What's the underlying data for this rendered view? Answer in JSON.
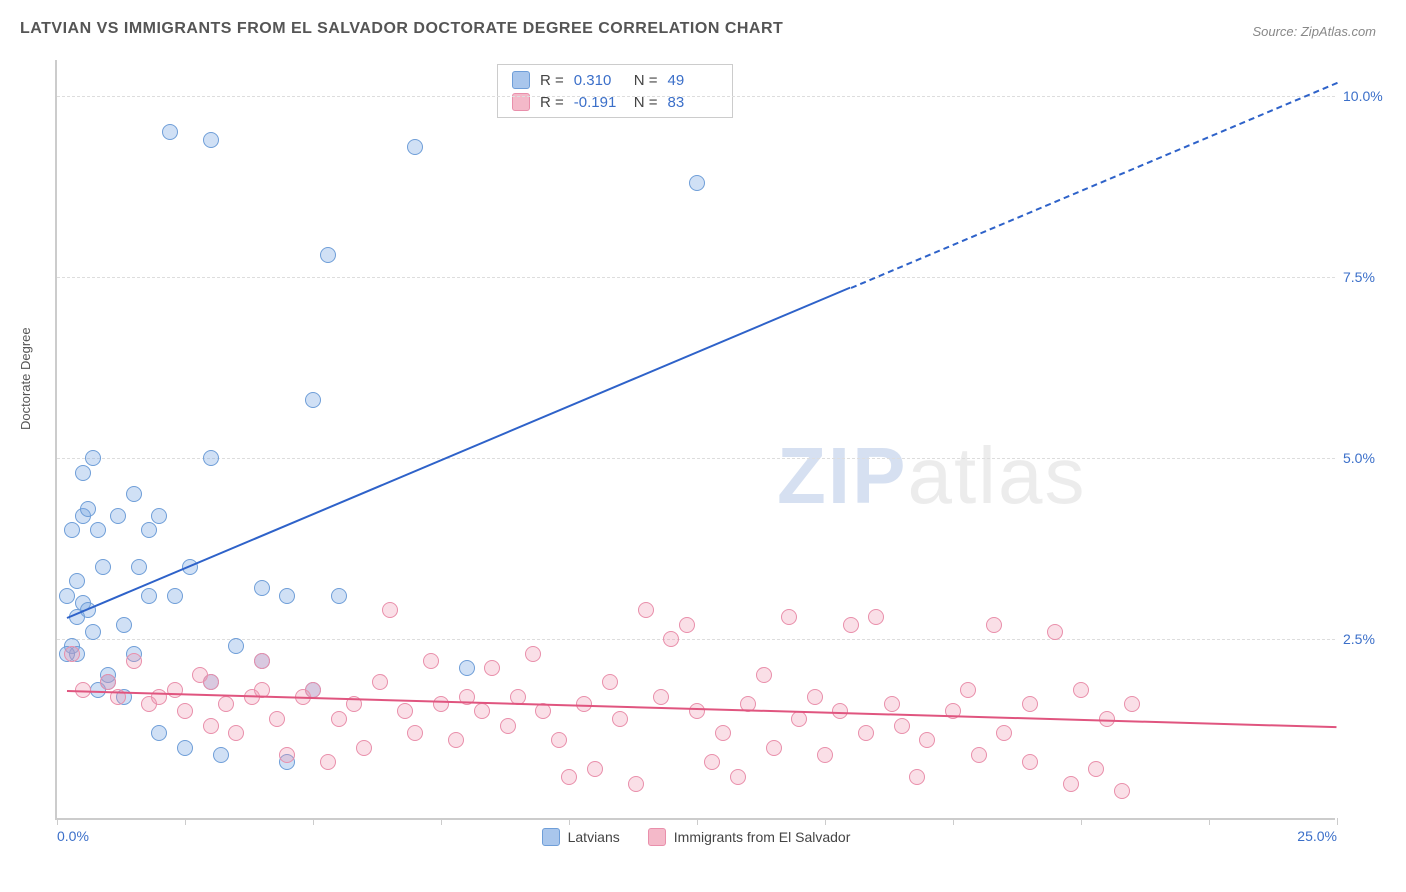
{
  "title": "LATVIAN VS IMMIGRANTS FROM EL SALVADOR DOCTORATE DEGREE CORRELATION CHART",
  "source": "Source: ZipAtlas.com",
  "y_axis_label": "Doctorate Degree",
  "watermark": {
    "part1": "ZIP",
    "part2": "atlas"
  },
  "chart": {
    "type": "scatter",
    "background_color": "#ffffff",
    "grid_color": "#dddddd",
    "axis_color": "#cccccc",
    "xlim": [
      0,
      25
    ],
    "ylim": [
      0,
      10.5
    ],
    "x_ticks": [
      0,
      2.5,
      5,
      7.5,
      10,
      12.5,
      15,
      17.5,
      20,
      22.5,
      25
    ],
    "x_tick_labels": {
      "0": "0.0%",
      "25": "25.0%"
    },
    "y_ticks": [
      2.5,
      5.0,
      7.5,
      10.0
    ],
    "y_tick_labels": [
      "2.5%",
      "5.0%",
      "7.5%",
      "10.0%"
    ],
    "point_radius": 8,
    "point_stroke_width": 1.5,
    "series": [
      {
        "name": "Latvians",
        "color_fill": "rgba(120,165,225,0.35)",
        "color_stroke": "#6f9ed8",
        "swatch_color": "#a9c6ec",
        "R": "0.310",
        "N": "49",
        "trend": {
          "x1": 0.2,
          "y1": 2.8,
          "x2": 25,
          "y2": 10.2,
          "color": "#2e62c9",
          "solid_until_x": 15.5
        },
        "points": [
          [
            0.3,
            2.4
          ],
          [
            0.4,
            2.3
          ],
          [
            0.2,
            3.1
          ],
          [
            0.5,
            3.0
          ],
          [
            0.6,
            2.9
          ],
          [
            0.4,
            3.3
          ],
          [
            0.7,
            2.6
          ],
          [
            0.8,
            1.8
          ],
          [
            1.0,
            1.9
          ],
          [
            0.3,
            4.0
          ],
          [
            0.5,
            4.2
          ],
          [
            0.6,
            4.3
          ],
          [
            0.8,
            4.0
          ],
          [
            1.2,
            4.2
          ],
          [
            1.5,
            4.5
          ],
          [
            1.8,
            4.0
          ],
          [
            2.0,
            4.2
          ],
          [
            0.5,
            4.8
          ],
          [
            0.7,
            5.0
          ],
          [
            1.3,
            2.7
          ],
          [
            1.6,
            3.5
          ],
          [
            1.8,
            3.1
          ],
          [
            2.3,
            3.1
          ],
          [
            2.6,
            3.5
          ],
          [
            3.0,
            1.9
          ],
          [
            3.5,
            2.4
          ],
          [
            4.0,
            2.2
          ],
          [
            4.5,
            3.1
          ],
          [
            5.0,
            1.8
          ],
          [
            3.0,
            5.0
          ],
          [
            4.0,
            3.2
          ],
          [
            2.0,
            1.2
          ],
          [
            2.5,
            1.0
          ],
          [
            3.2,
            0.9
          ],
          [
            4.5,
            0.8
          ],
          [
            5.5,
            3.1
          ],
          [
            1.0,
            2.0
          ],
          [
            1.3,
            1.7
          ],
          [
            2.2,
            9.5
          ],
          [
            3.0,
            9.4
          ],
          [
            7.0,
            9.3
          ],
          [
            5.0,
            5.8
          ],
          [
            5.3,
            7.8
          ],
          [
            12.5,
            8.8
          ],
          [
            8.0,
            2.1
          ],
          [
            1.5,
            2.3
          ],
          [
            0.9,
            3.5
          ],
          [
            0.4,
            2.8
          ],
          [
            0.2,
            2.3
          ]
        ]
      },
      {
        "name": "Immigrants from El Salvador",
        "color_fill": "rgba(240,150,175,0.30)",
        "color_stroke": "#e98fab",
        "swatch_color": "#f4b9c9",
        "R": "-0.191",
        "N": "83",
        "trend": {
          "x1": 0.2,
          "y1": 1.8,
          "x2": 25,
          "y2": 1.3,
          "color": "#e0557f",
          "solid_until_x": 25
        },
        "points": [
          [
            0.5,
            1.8
          ],
          [
            1.0,
            1.9
          ],
          [
            1.2,
            1.7
          ],
          [
            1.5,
            2.2
          ],
          [
            1.8,
            1.6
          ],
          [
            2.0,
            1.7
          ],
          [
            2.3,
            1.8
          ],
          [
            2.5,
            1.5
          ],
          [
            2.8,
            2.0
          ],
          [
            3.0,
            1.9
          ],
          [
            3.3,
            1.6
          ],
          [
            3.5,
            1.2
          ],
          [
            3.8,
            1.7
          ],
          [
            4.0,
            1.8
          ],
          [
            4.3,
            1.4
          ],
          [
            4.5,
            0.9
          ],
          [
            4.8,
            1.7
          ],
          [
            5.0,
            1.8
          ],
          [
            5.3,
            0.8
          ],
          [
            5.5,
            1.4
          ],
          [
            5.8,
            1.6
          ],
          [
            6.0,
            1.0
          ],
          [
            6.3,
            1.9
          ],
          [
            6.5,
            2.9
          ],
          [
            6.8,
            1.5
          ],
          [
            7.0,
            1.2
          ],
          [
            7.3,
            2.2
          ],
          [
            7.5,
            1.6
          ],
          [
            7.8,
            1.1
          ],
          [
            8.0,
            1.7
          ],
          [
            8.3,
            1.5
          ],
          [
            8.5,
            2.1
          ],
          [
            8.8,
            1.3
          ],
          [
            9.0,
            1.7
          ],
          [
            9.3,
            2.3
          ],
          [
            9.5,
            1.5
          ],
          [
            9.8,
            1.1
          ],
          [
            10.0,
            0.6
          ],
          [
            10.3,
            1.6
          ],
          [
            10.5,
            0.7
          ],
          [
            10.8,
            1.9
          ],
          [
            11.0,
            1.4
          ],
          [
            11.3,
            0.5
          ],
          [
            11.5,
            2.9
          ],
          [
            11.8,
            1.7
          ],
          [
            12.0,
            2.5
          ],
          [
            12.3,
            2.7
          ],
          [
            12.5,
            1.5
          ],
          [
            12.8,
            0.8
          ],
          [
            13.0,
            1.2
          ],
          [
            13.3,
            0.6
          ],
          [
            13.5,
            1.6
          ],
          [
            13.8,
            2.0
          ],
          [
            14.0,
            1.0
          ],
          [
            14.3,
            2.8
          ],
          [
            14.5,
            1.4
          ],
          [
            14.8,
            1.7
          ],
          [
            15.0,
            0.9
          ],
          [
            15.3,
            1.5
          ],
          [
            15.5,
            2.7
          ],
          [
            15.8,
            1.2
          ],
          [
            16.0,
            2.8
          ],
          [
            16.3,
            1.6
          ],
          [
            16.5,
            1.3
          ],
          [
            17.0,
            1.1
          ],
          [
            17.5,
            1.5
          ],
          [
            18.0,
            0.9
          ],
          [
            18.3,
            2.7
          ],
          [
            18.5,
            1.2
          ],
          [
            19.0,
            1.6
          ],
          [
            19.5,
            2.6
          ],
          [
            19.8,
            0.5
          ],
          [
            20.0,
            1.8
          ],
          [
            20.3,
            0.7
          ],
          [
            20.5,
            1.4
          ],
          [
            20.8,
            0.4
          ],
          [
            21.0,
            1.6
          ],
          [
            19.0,
            0.8
          ],
          [
            17.8,
            1.8
          ],
          [
            16.8,
            0.6
          ],
          [
            3.0,
            1.3
          ],
          [
            4.0,
            2.2
          ],
          [
            0.3,
            2.3
          ]
        ]
      }
    ]
  },
  "info_box": {
    "r_label": "R =",
    "n_label": "N ="
  },
  "legend": {
    "items": [
      "Latvians",
      "Immigrants from El Salvador"
    ]
  }
}
